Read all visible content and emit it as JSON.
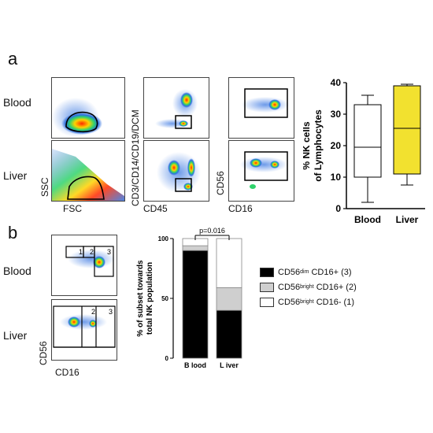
{
  "panel_a": {
    "letter": "a",
    "rows": [
      "Blood",
      "Liver"
    ],
    "axes": {
      "ssc": "SSC",
      "fsc": "FSC",
      "lineage": "CD3/CD14/CD19/DCM",
      "cd45": "CD45",
      "cd56": "CD56",
      "cd16": "CD16"
    }
  },
  "panel_b": {
    "letter": "b",
    "rows": [
      "Blood",
      "Liver"
    ],
    "axes": {
      "cd56": "CD56",
      "cd16": "CD16"
    },
    "gate_numbers": [
      "1",
      "2",
      "3"
    ]
  },
  "chart_data": [
    {
      "type": "box",
      "ylabel": "% NK cells\nof Lymphocytes",
      "ylabel_lines": [
        "% NK cells",
        "of Lymphocytes"
      ],
      "ylim": [
        0,
        40
      ],
      "yticks": [
        "0",
        "10",
        "20",
        "30",
        "40"
      ],
      "categories": [
        "Blood",
        "Liver"
      ],
      "boxes": [
        {
          "name": "Blood",
          "min": 2,
          "q1": 10,
          "median": 19.5,
          "q3": 33,
          "max": 36,
          "color": "#ffffff"
        },
        {
          "name": "Liver",
          "min": 7.5,
          "q1": 11,
          "median": 25.5,
          "q3": 39,
          "max": 39.5,
          "color": "#f2e12f"
        }
      ]
    },
    {
      "type": "bar",
      "stacked": true,
      "ylabel_lines": [
        "% of subset towards",
        "total NK population"
      ],
      "ylim": [
        0,
        100
      ],
      "yticks": [
        "0",
        "50",
        "100"
      ],
      "categories": [
        "B lood",
        "L iver"
      ],
      "annotation": "p=0.016",
      "series": [
        {
          "name": "CD56dim CD16+ (3)",
          "values": [
            90,
            40
          ],
          "color": "#000000"
        },
        {
          "name": "CD56bright CD16+ (2)",
          "values": [
            4,
            19
          ],
          "color": "#cfcfcf"
        },
        {
          "name": "CD56bright CD16- (1)",
          "values": [
            6,
            41
          ],
          "color": "#ffffff"
        }
      ],
      "legend": [
        {
          "base": "CD56",
          "sup": "dim",
          "rest": " CD16+ (3)",
          "color": "#000000"
        },
        {
          "base": "CD56",
          "sup": "bright",
          "rest": " CD16+ (2)",
          "color": "#cfcfcf"
        },
        {
          "base": "CD56",
          "sup": "bright",
          "rest": " CD16- (1)",
          "color": "#ffffff"
        }
      ]
    }
  ]
}
